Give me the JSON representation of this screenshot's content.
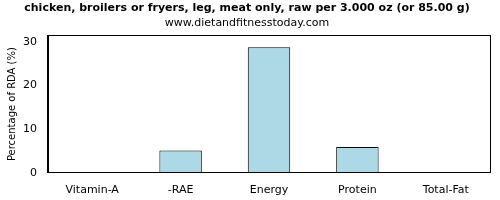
{
  "chart_data": {
    "type": "bar",
    "title": "chicken, broilers or fryers, leg, meat only, raw per 3.000 oz (or 85.00 g)",
    "subtitle": "www.dietandfitnesstoday.com",
    "y_label": "Percentage of RDA (%)",
    "categories": [
      "Vitamin-A",
      "-RAE",
      "Energy",
      "Protein",
      "Total-Fat"
    ],
    "values": [
      0,
      5.1,
      28.8,
      5.9,
      0
    ],
    "color": "#add8e6",
    "ylim": [
      0,
      31.5
    ],
    "yticks": [
      0,
      10,
      20,
      30
    ],
    "grid": false
  }
}
